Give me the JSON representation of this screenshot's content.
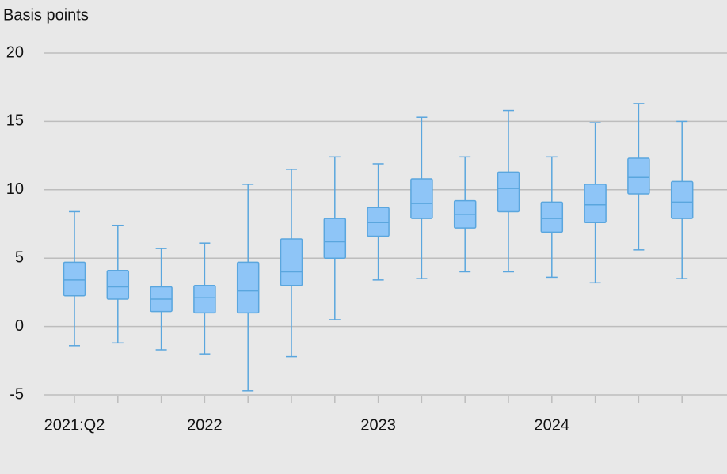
{
  "chart_data": {
    "type": "box",
    "y_label": "Basis points",
    "categories": [
      "2021:Q2",
      null,
      null,
      "2022",
      null,
      null,
      null,
      "2023",
      null,
      null,
      null,
      "2024",
      null,
      null,
      null
    ],
    "min": [
      -1.4,
      -1.2,
      -1.7,
      -2.0,
      -4.7,
      -2.2,
      0.5,
      3.4,
      3.5,
      4.0,
      4.0,
      3.6,
      3.2,
      5.6,
      3.5
    ],
    "q1": [
      2.25,
      2.0,
      1.1,
      1.0,
      1.0,
      3.0,
      5.0,
      6.6,
      7.9,
      7.2,
      8.4,
      6.9,
      7.6,
      9.7,
      7.9
    ],
    "median": [
      3.4,
      2.9,
      2.0,
      2.1,
      2.6,
      4.0,
      6.2,
      7.6,
      9.0,
      8.2,
      10.1,
      7.9,
      8.9,
      10.9,
      9.1
    ],
    "q3": [
      4.7,
      4.1,
      2.9,
      3.0,
      4.7,
      6.4,
      7.9,
      8.7,
      10.8,
      9.2,
      11.3,
      9.1,
      10.4,
      12.3,
      10.6
    ],
    "max": [
      8.4,
      7.4,
      5.7,
      6.1,
      10.4,
      11.5,
      12.4,
      11.9,
      15.3,
      12.4,
      15.8,
      12.4,
      14.9,
      16.3,
      15.0
    ],
    "fill": "#8ec5f7",
    "color": "#5aa6de",
    "ylim": [
      -5,
      20
    ],
    "yticks": [
      -5,
      0,
      5,
      10,
      15,
      20
    ],
    "grid": true
  }
}
